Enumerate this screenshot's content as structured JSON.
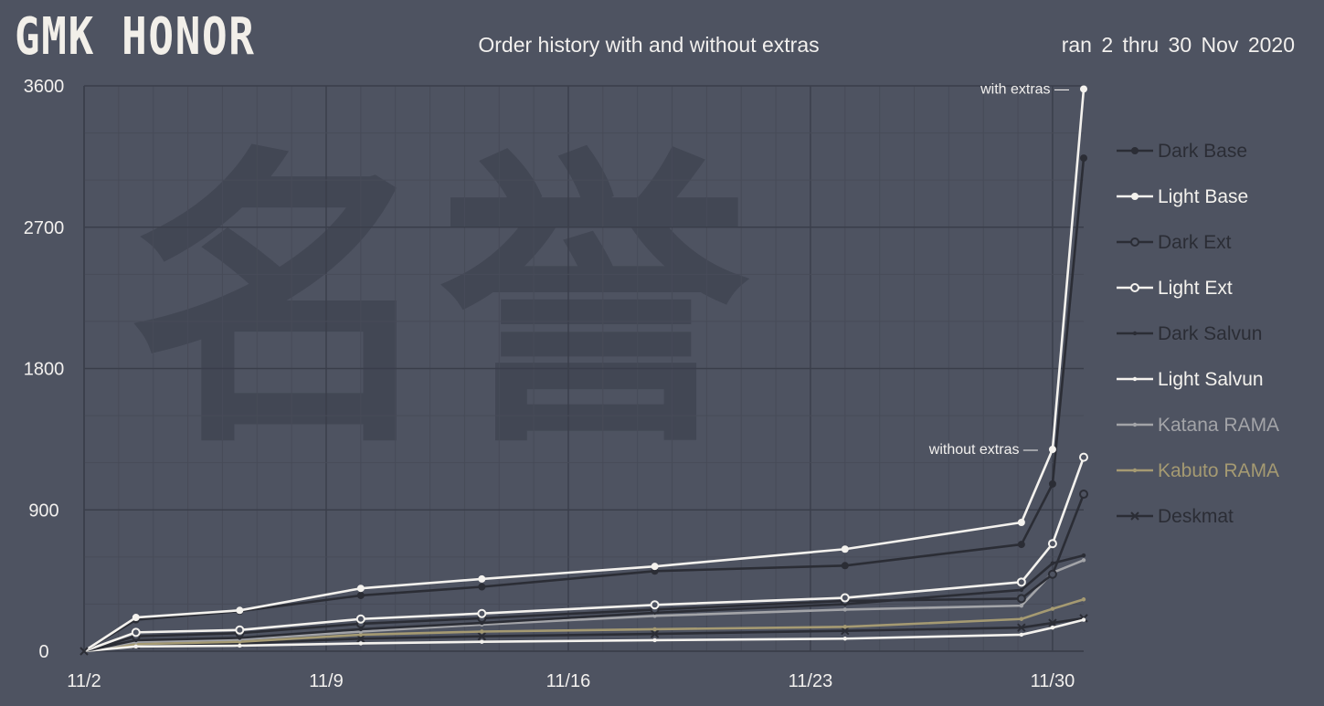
{
  "header": {
    "logo": "GMK HONOR",
    "title": "Order history with and without extras",
    "subtitle": "ran 2 thru 30 Nov 2020"
  },
  "watermark": "名誉",
  "annotations": {
    "with_extras": "with extras —",
    "without_extras": "without extras —"
  },
  "chart_data": {
    "type": "line",
    "title": "Order history with and without extras",
    "ylim": [
      0,
      3600
    ],
    "xlim": [
      2,
      30.9
    ],
    "yticks": [
      0,
      900,
      1800,
      2700,
      3600
    ],
    "ytick_labels": [
      "0",
      "900",
      "1800",
      "2700",
      "3600"
    ],
    "xticks": [
      2,
      9,
      16,
      23,
      30
    ],
    "xtick_labels": [
      "11/2",
      "11/9",
      "11/16",
      "11/23",
      "11/30"
    ],
    "grid": true,
    "legend_position": "right",
    "x": [
      2,
      3.5,
      6.5,
      10,
      13.5,
      18.5,
      24,
      29.1,
      30,
      30.9
    ],
    "series": [
      {
        "name": "Dark Base",
        "color": "#2b2d35",
        "marker": "dot",
        "values": [
          0,
          200,
          255,
          355,
          410,
          510,
          545,
          680,
          1065,
          3140
        ]
      },
      {
        "name": "Light Base",
        "color": "#f4f2ee",
        "marker": "dot",
        "values": [
          0,
          215,
          260,
          400,
          460,
          540,
          650,
          820,
          1285,
          3580
        ]
      },
      {
        "name": "Dark Ext",
        "color": "#2b2d35",
        "marker": "circle",
        "values": [
          0,
          95,
          115,
          175,
          210,
          265,
          320,
          335,
          490,
          1000
        ]
      },
      {
        "name": "Light Ext",
        "color": "#f4f2ee",
        "marker": "circle",
        "values": [
          0,
          120,
          135,
          205,
          240,
          295,
          340,
          440,
          685,
          1235
        ]
      },
      {
        "name": "Dark Salvun",
        "color": "#2b2d35",
        "marker": "small-dot",
        "values": [
          0,
          70,
          85,
          140,
          180,
          245,
          300,
          390,
          560,
          610
        ]
      },
      {
        "name": "Light Salvun",
        "color": "#f4f2ee",
        "marker": "small-dot",
        "values": [
          0,
          30,
          35,
          50,
          60,
          70,
          80,
          105,
          150,
          200
        ]
      },
      {
        "name": "Katana RAMA",
        "color": "#a3a4a8",
        "marker": "small-dot",
        "values": [
          0,
          60,
          75,
          125,
          170,
          225,
          265,
          290,
          500,
          580
        ]
      },
      {
        "name": "Kabuto RAMA",
        "color": "#a59a72",
        "marker": "small-dot",
        "values": [
          0,
          45,
          60,
          105,
          125,
          140,
          155,
          205,
          270,
          330
        ]
      },
      {
        "name": "Deskmat",
        "color": "#2b2d35",
        "marker": "x",
        "values": [
          0,
          40,
          50,
          80,
          95,
          110,
          130,
          150,
          180,
          210
        ]
      }
    ]
  }
}
